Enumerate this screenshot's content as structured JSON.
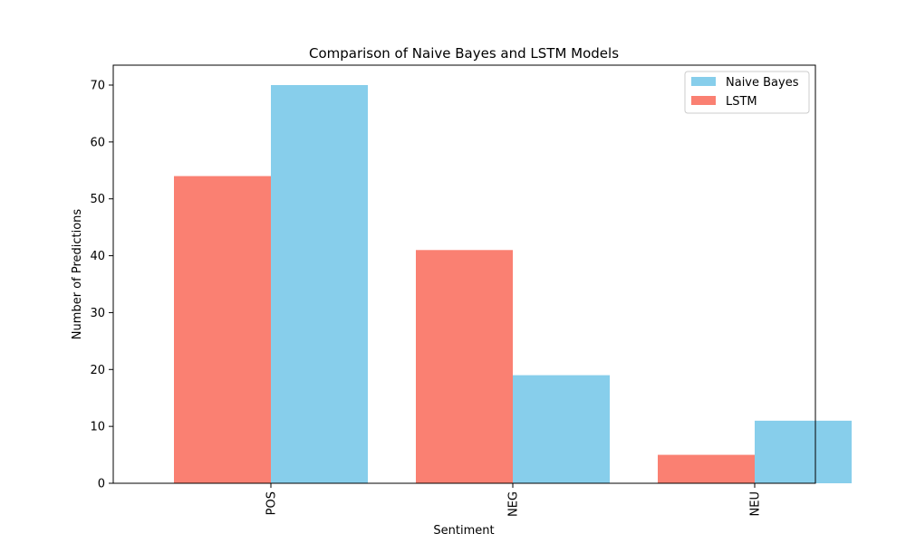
{
  "chart_data": {
    "type": "bar",
    "title": "Comparison of Naive Bayes and LSTM Models",
    "xlabel": "Sentiment",
    "ylabel": "Number of Predictions",
    "categories": [
      "POS",
      "NEG",
      "NEU"
    ],
    "series": [
      {
        "name": "Naive Bayes",
        "color": "#87ceeb",
        "values": [
          70,
          19,
          11
        ]
      },
      {
        "name": "LSTM",
        "color": "#fa8072",
        "values": [
          54,
          41,
          5
        ]
      }
    ],
    "ylim": [
      0,
      73.5
    ],
    "yticks": [
      0,
      10,
      20,
      30,
      40,
      50,
      60,
      70
    ],
    "grid": false,
    "legend_position": "top-right"
  }
}
